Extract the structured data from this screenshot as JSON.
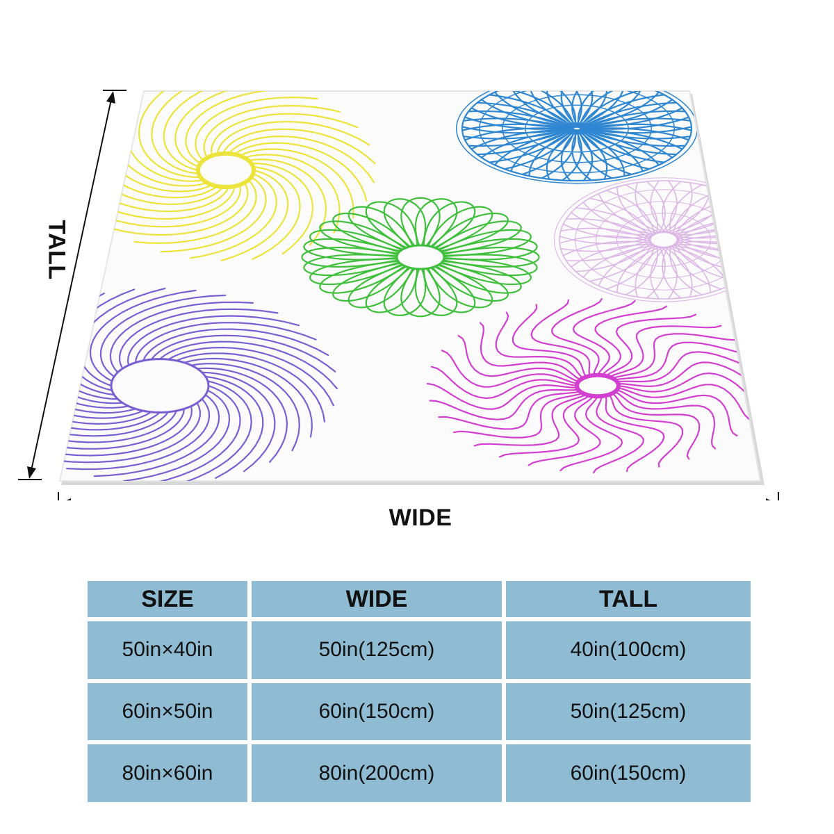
{
  "dimensions": {
    "wide_label": "WIDE",
    "tall_label": "TALL"
  },
  "blanket": {
    "pattern": "spirograph-rosettes",
    "rosettes": [
      {
        "name": "yellow",
        "color": "#ece43a"
      },
      {
        "name": "blue",
        "color": "#2f86d1"
      },
      {
        "name": "green",
        "color": "#3fbf3c"
      },
      {
        "name": "lilac",
        "color": "#dcb6e6"
      },
      {
        "name": "purple",
        "color": "#7a5fd3"
      },
      {
        "name": "magenta",
        "color": "#d23fd0"
      }
    ]
  },
  "size_table": {
    "headers": [
      "SIZE",
      "WIDE",
      "TALL"
    ],
    "rows": [
      {
        "size": "50in×40in",
        "wide": "50in(125cm)",
        "tall": "40in(100cm)"
      },
      {
        "size": "60in×50in",
        "wide": "60in(150cm)",
        "tall": "50in(125cm)"
      },
      {
        "size": "80in×60in",
        "wide": "80in(200cm)",
        "tall": "60in(150cm)"
      }
    ],
    "cell_color": "#8fbcd3"
  }
}
